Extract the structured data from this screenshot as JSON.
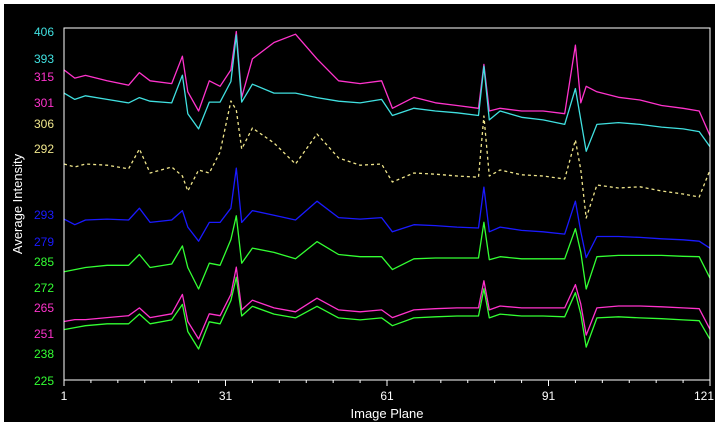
{
  "chart_data": {
    "type": "line",
    "xlabel": "Image Plane",
    "ylabel": "Average Intensity",
    "grid": false,
    "legend": "none",
    "background": "#000000",
    "frame_color": "#ffffff",
    "x_ticks": [
      "1",
      "31",
      "61",
      "91",
      "121"
    ],
    "xlim": [
      1,
      121
    ],
    "y_tick_labels": [
      {
        "text": "406",
        "color": "#40e0e0"
      },
      {
        "text": "393",
        "color": "#40e0e0"
      },
      {
        "text": "315",
        "color": "#ff33cc"
      },
      {
        "text": "301",
        "color": "#ff33cc"
      },
      {
        "text": "306",
        "color": "#f0e68c"
      },
      {
        "text": "292",
        "color": "#f0e68c"
      },
      {
        "text": "293",
        "color": "#1a1aff"
      },
      {
        "text": "279",
        "color": "#1a1aff"
      },
      {
        "text": "285",
        "color": "#33ff33"
      },
      {
        "text": "272",
        "color": "#33ff33"
      },
      {
        "text": "265",
        "color": "#ff33cc"
      },
      {
        "text": "251",
        "color": "#ff33cc"
      },
      {
        "text": "238",
        "color": "#33ff33"
      },
      {
        "text": "225",
        "color": "#33ff33"
      }
    ],
    "series": [
      {
        "color": "#ff33cc",
        "style": "solid",
        "x": [
          1,
          3,
          5,
          9,
          13,
          15,
          17,
          21,
          23,
          24,
          26,
          28,
          30,
          32,
          33,
          34,
          36,
          40,
          44,
          48,
          52,
          56,
          60,
          62,
          66,
          70,
          74,
          78,
          79,
          80,
          82,
          86,
          90,
          94,
          96,
          97,
          98,
          100,
          104,
          108,
          112,
          116,
          119,
          121
        ],
        "y": [
          312.0,
          310.5,
          311.0,
          310.0,
          309.2,
          311.5,
          310.0,
          309.5,
          314.5,
          308.0,
          304.5,
          310.0,
          309.0,
          312.0,
          319.0,
          307.0,
          314.0,
          317.0,
          318.5,
          314.0,
          310.0,
          309.5,
          310.0,
          305.0,
          307.0,
          306.0,
          305.5,
          305.0,
          313.0,
          304.5,
          305.0,
          304.5,
          304.5,
          304.0,
          316.5,
          306.0,
          309.0,
          308.0,
          307.0,
          306.5,
          305.5,
          305.0,
          304.5,
          300.0
        ]
      },
      {
        "color": "#40e0e0",
        "style": "solid",
        "x": [
          1,
          3,
          5,
          9,
          13,
          15,
          17,
          21,
          23,
          24,
          26,
          28,
          30,
          32,
          33,
          34,
          36,
          40,
          44,
          48,
          52,
          56,
          60,
          62,
          66,
          70,
          74,
          78,
          79,
          80,
          82,
          86,
          90,
          94,
          96,
          97,
          98,
          100,
          104,
          108,
          112,
          116,
          119,
          121
        ],
        "y": [
          399.5,
          398.8,
          399.2,
          398.8,
          398.4,
          399.0,
          398.6,
          398.4,
          401.5,
          397.2,
          395.5,
          398.5,
          398.5,
          400.8,
          406.0,
          398.5,
          400.5,
          399.5,
          399.5,
          399.0,
          398.6,
          398.4,
          398.8,
          397.0,
          397.8,
          397.5,
          397.3,
          397.0,
          402.5,
          396.5,
          397.5,
          396.8,
          396.5,
          396.0,
          400.0,
          396.5,
          393.0,
          396.0,
          396.2,
          396.0,
          395.7,
          395.5,
          395.2,
          393.5
        ]
      },
      {
        "color": "#f0e68c",
        "style": "dashed",
        "x": [
          1,
          3,
          5,
          9,
          13,
          15,
          17,
          21,
          23,
          24,
          26,
          28,
          30,
          32,
          33,
          34,
          36,
          40,
          44,
          48,
          52,
          56,
          60,
          62,
          66,
          70,
          74,
          78,
          79,
          80,
          82,
          86,
          90,
          94,
          96,
          97,
          98,
          100,
          104,
          108,
          112,
          116,
          119,
          121
        ],
        "y": [
          292.0,
          291.5,
          292.0,
          291.8,
          291.2,
          294.5,
          290.5,
          291.5,
          290.0,
          287.5,
          291.0,
          290.5,
          294.0,
          302.5,
          301.0,
          294.5,
          298.0,
          295.5,
          292.0,
          297.0,
          293.0,
          291.8,
          292.0,
          289.0,
          290.5,
          290.3,
          290.0,
          289.8,
          300.0,
          290.0,
          291.0,
          290.2,
          290.0,
          289.5,
          296.0,
          291.0,
          283.0,
          288.5,
          288.0,
          288.2,
          287.5,
          287.0,
          286.5,
          291.0
        ]
      },
      {
        "color": "#1a1aff",
        "style": "solid",
        "x": [
          1,
          3,
          5,
          9,
          13,
          15,
          17,
          21,
          23,
          24,
          26,
          28,
          30,
          32,
          33,
          34,
          36,
          40,
          44,
          48,
          52,
          56,
          60,
          62,
          66,
          70,
          74,
          78,
          79,
          80,
          82,
          86,
          90,
          94,
          96,
          97,
          98,
          100,
          104,
          108,
          112,
          116,
          119,
          121
        ],
        "y": [
          279.2,
          278.0,
          279.0,
          279.2,
          279.0,
          281.5,
          278.5,
          279.0,
          281.0,
          277.5,
          274.5,
          278.5,
          278.5,
          281.5,
          290.0,
          278.5,
          281.0,
          280.0,
          279.0,
          283.0,
          279.5,
          279.2,
          279.5,
          276.5,
          278.0,
          277.8,
          277.5,
          277.3,
          286.0,
          276.5,
          277.5,
          276.8,
          276.5,
          276.0,
          283.0,
          276.5,
          271.0,
          275.5,
          275.5,
          275.3,
          275.0,
          274.8,
          274.5,
          273.0
        ]
      },
      {
        "color": "#33ff33",
        "style": "solid",
        "x": [
          1,
          3,
          5,
          9,
          13,
          15,
          17,
          21,
          23,
          24,
          26,
          28,
          30,
          32,
          33,
          34,
          36,
          40,
          44,
          48,
          52,
          56,
          60,
          62,
          66,
          70,
          74,
          78,
          79,
          80,
          82,
          86,
          90,
          94,
          96,
          97,
          98,
          100,
          104,
          108,
          112,
          116,
          119,
          121
        ],
        "y": [
          270.0,
          270.5,
          271.0,
          271.5,
          271.5,
          274.0,
          271.0,
          271.8,
          276.0,
          271.0,
          266.0,
          272.0,
          271.5,
          277.5,
          283.0,
          272.0,
          275.5,
          274.5,
          273.0,
          277.0,
          274.0,
          273.5,
          273.5,
          270.5,
          273.0,
          273.2,
          273.2,
          273.2,
          281.5,
          272.8,
          273.5,
          273.0,
          273.0,
          273.0,
          280.0,
          274.5,
          266.0,
          273.5,
          273.8,
          273.8,
          273.8,
          273.6,
          273.5,
          268.5
        ]
      },
      {
        "color": "#ff33cc",
        "style": "solid",
        "x": [
          1,
          3,
          5,
          9,
          13,
          15,
          17,
          21,
          23,
          24,
          26,
          28,
          30,
          32,
          33,
          34,
          36,
          40,
          44,
          48,
          52,
          56,
          60,
          62,
          66,
          70,
          74,
          78,
          79,
          80,
          82,
          86,
          90,
          94,
          96,
          97,
          98,
          100,
          104,
          108,
          112,
          116,
          119,
          121
        ],
        "y": [
          249.0,
          249.5,
          249.5,
          250.0,
          250.5,
          252.5,
          250.0,
          251.0,
          256.0,
          249.0,
          244.5,
          251.0,
          250.5,
          256.0,
          263.0,
          252.0,
          254.5,
          252.5,
          251.5,
          255.0,
          252.0,
          251.5,
          252.0,
          250.0,
          252.0,
          252.3,
          252.5,
          252.5,
          259.5,
          252.0,
          253.0,
          252.5,
          252.5,
          252.5,
          258.5,
          253.5,
          245.5,
          252.5,
          253.0,
          253.0,
          252.8,
          252.5,
          252.3,
          247.0
        ]
      },
      {
        "color": "#33ff33",
        "style": "solid",
        "x": [
          1,
          3,
          5,
          9,
          13,
          15,
          17,
          21,
          23,
          24,
          26,
          28,
          30,
          32,
          33,
          34,
          36,
          40,
          44,
          48,
          52,
          56,
          60,
          62,
          66,
          70,
          74,
          78,
          79,
          80,
          82,
          86,
          90,
          94,
          96,
          97,
          98,
          100,
          104,
          108,
          112,
          116,
          119,
          121
        ],
        "y": [
          243.5,
          244.0,
          244.5,
          245.0,
          245.0,
          247.5,
          245.0,
          246.0,
          250.0,
          243.0,
          238.5,
          245.5,
          245.0,
          251.0,
          257.0,
          247.0,
          249.5,
          247.5,
          246.5,
          249.5,
          246.5,
          246.0,
          246.5,
          244.5,
          246.5,
          246.8,
          247.0,
          247.0,
          254.0,
          246.5,
          247.5,
          247.0,
          247.0,
          246.8,
          253.0,
          247.5,
          239.0,
          246.5,
          246.8,
          246.5,
          246.3,
          246.0,
          245.8,
          241.0
        ]
      }
    ]
  }
}
